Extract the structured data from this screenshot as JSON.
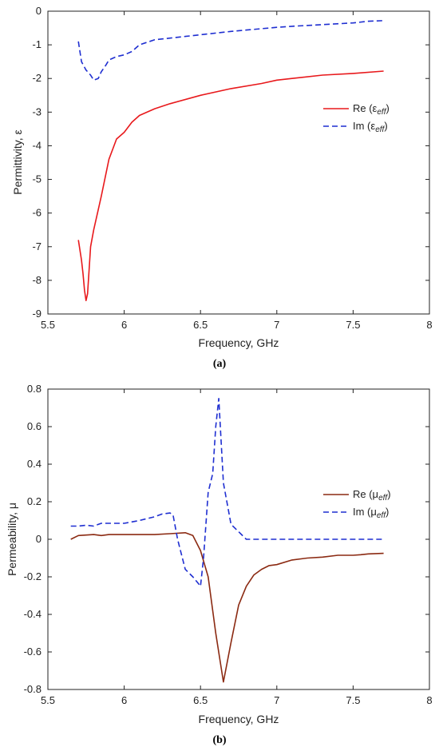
{
  "chart_data": [
    {
      "type": "line",
      "xlabel": "Frequency, GHz",
      "ylabel": "Permittivity,  ε",
      "xlim": [
        5.5,
        8
      ],
      "ylim": [
        -9,
        0
      ],
      "xticks": [
        "5.5",
        "6",
        "6.5",
        "7",
        "7.5",
        "8"
      ],
      "yticks": [
        "-9",
        "-8",
        "-7",
        "-6",
        "-5",
        "-4",
        "-3",
        "-2",
        "-1",
        "0"
      ],
      "legend": "right",
      "caption": "(a)",
      "series": [
        {
          "name": "Re (ε",
          "name_sub": "eff",
          "name_end": ")",
          "color": "#e8191c",
          "dash": "solid",
          "x": [
            5.7,
            5.72,
            5.73,
            5.74,
            5.75,
            5.76,
            5.78,
            5.8,
            5.85,
            5.9,
            5.95,
            6.0,
            6.05,
            6.1,
            6.2,
            6.3,
            6.5,
            6.7,
            6.9,
            7.0,
            7.1,
            7.3,
            7.5,
            7.7
          ],
          "y": [
            -6.8,
            -7.4,
            -7.8,
            -8.3,
            -8.6,
            -8.4,
            -7.0,
            -6.5,
            -5.5,
            -4.4,
            -3.8,
            -3.6,
            -3.3,
            -3.1,
            -2.9,
            -2.75,
            -2.5,
            -2.3,
            -2.15,
            -2.05,
            -2.0,
            -1.9,
            -1.85,
            -1.78
          ]
        },
        {
          "name": "Im (ε",
          "name_sub": "eff",
          "name_end": ")",
          "color": "#1f2fd1",
          "dash": "dashed",
          "x": [
            5.7,
            5.72,
            5.75,
            5.78,
            5.8,
            5.83,
            5.85,
            5.88,
            5.9,
            5.95,
            6.0,
            6.05,
            6.1,
            6.2,
            6.3,
            6.4,
            6.5,
            6.7,
            6.9,
            7.0,
            7.1,
            7.3,
            7.5,
            7.6,
            7.7
          ],
          "y": [
            -0.9,
            -1.5,
            -1.75,
            -1.9,
            -2.05,
            -2.0,
            -1.8,
            -1.6,
            -1.45,
            -1.35,
            -1.3,
            -1.2,
            -1.0,
            -0.85,
            -0.8,
            -0.75,
            -0.7,
            -0.6,
            -0.52,
            -0.48,
            -0.45,
            -0.4,
            -0.35,
            -0.3,
            -0.28
          ]
        }
      ]
    },
    {
      "type": "line",
      "xlabel": "Frequency, GHz",
      "ylabel": "Permeability, μ",
      "xlim": [
        5.5,
        8
      ],
      "ylim": [
        -0.8,
        0.8
      ],
      "xticks": [
        "5.5",
        "6",
        "6.5",
        "7",
        "7.5",
        "8"
      ],
      "yticks": [
        "-0.8",
        "-0.6",
        "-0.4",
        "-0.2",
        "0",
        "0.2",
        "0.4",
        "0.6",
        "0.8"
      ],
      "legend": "right",
      "caption": "(b)",
      "series": [
        {
          "name": "Re (μ",
          "name_sub": "eff",
          "name_end": ")",
          "color": "#8b2a12",
          "dash": "solid",
          "x": [
            5.65,
            5.7,
            5.8,
            5.85,
            5.9,
            6.0,
            6.1,
            6.2,
            6.3,
            6.4,
            6.45,
            6.5,
            6.55,
            6.6,
            6.65,
            6.7,
            6.75,
            6.8,
            6.85,
            6.9,
            6.95,
            7.0,
            7.1,
            7.2,
            7.3,
            7.4,
            7.5,
            7.55,
            7.6,
            7.7
          ],
          "y": [
            0.0,
            0.02,
            0.025,
            0.02,
            0.025,
            0.025,
            0.025,
            0.025,
            0.03,
            0.035,
            0.02,
            -0.06,
            -0.2,
            -0.5,
            -0.76,
            -0.55,
            -0.35,
            -0.25,
            -0.19,
            -0.16,
            -0.14,
            -0.135,
            -0.11,
            -0.1,
            -0.095,
            -0.085,
            -0.085,
            -0.082,
            -0.078,
            -0.075
          ]
        },
        {
          "name": "Im (μ",
          "name_sub": "eff",
          "name_end": ")",
          "color": "#1f2fd1",
          "dash": "dashed",
          "x": [
            5.65,
            5.7,
            5.75,
            5.8,
            5.85,
            5.9,
            6.0,
            6.1,
            6.15,
            6.2,
            6.25,
            6.3,
            6.32,
            6.35,
            6.4,
            6.45,
            6.48,
            6.5,
            6.52,
            6.55,
            6.58,
            6.6,
            6.62,
            6.65,
            6.7,
            6.75,
            6.8,
            7.0,
            7.5,
            7.7
          ],
          "y": [
            0.07,
            0.07,
            0.075,
            0.07,
            0.085,
            0.085,
            0.085,
            0.1,
            0.11,
            0.12,
            0.135,
            0.14,
            0.13,
            0.0,
            -0.16,
            -0.2,
            -0.23,
            -0.25,
            -0.1,
            0.25,
            0.35,
            0.6,
            0.75,
            0.3,
            0.08,
            0.04,
            0.0,
            0.0,
            0.0,
            0.0
          ]
        }
      ]
    }
  ]
}
